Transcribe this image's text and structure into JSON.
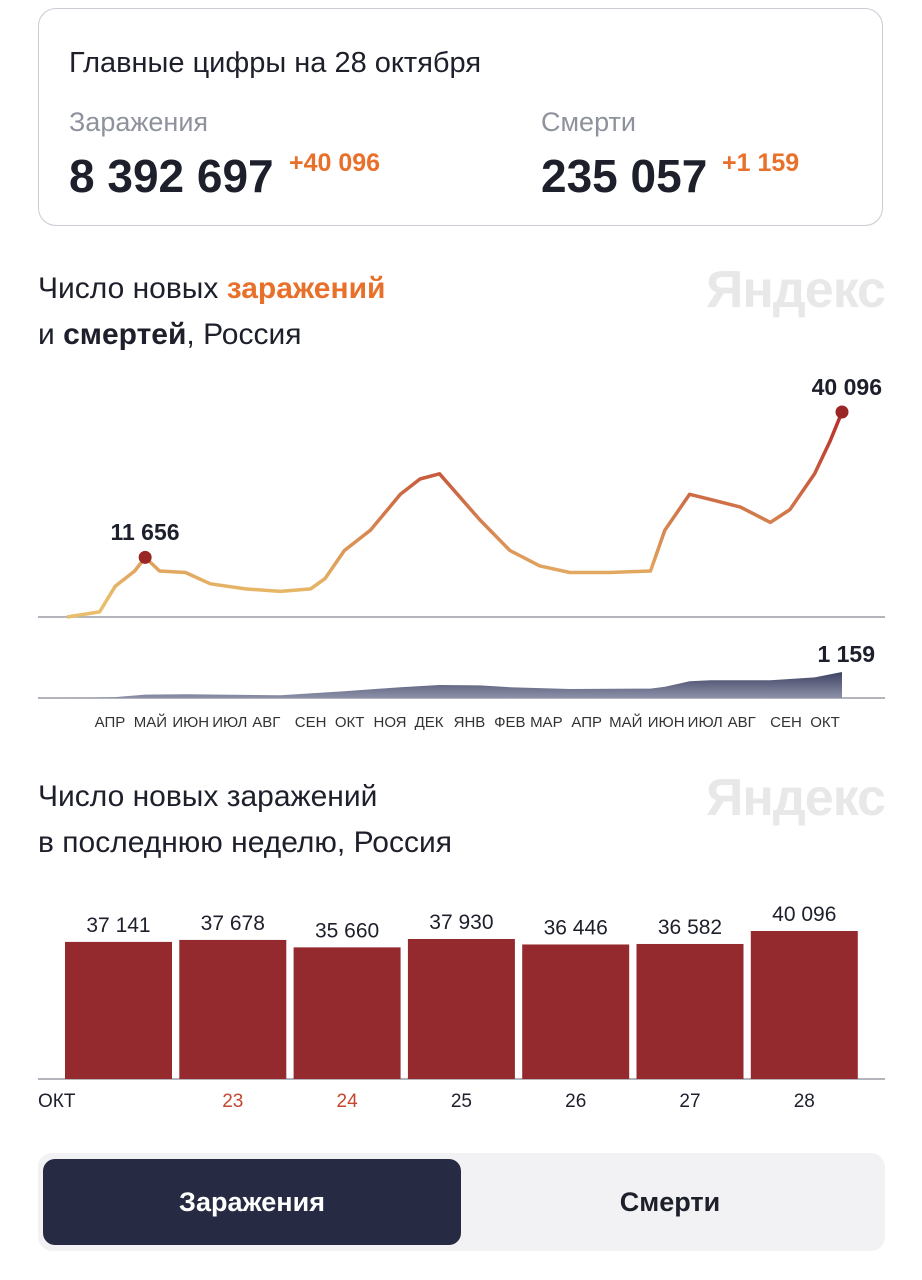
{
  "summary": {
    "title": "Главные цифры на 28 октября",
    "infections_label": "Заражения",
    "infections_total": "8 392 697",
    "infections_delta": "+40 096",
    "deaths_label": "Смерти",
    "deaths_total": "235 057",
    "deaths_delta": "+1 159"
  },
  "logo": "Яндекс",
  "chart_data": [
    {
      "type": "line",
      "title_parts": [
        "Число новых ",
        "заражений",
        "и ",
        "смертей",
        ", Россия"
      ],
      "colors": {
        "low": "#e9bd6a",
        "high": "#b9302a",
        "deaths": "#474c6b"
      },
      "series": [
        {
          "name": "заражения",
          "points": [
            [
              "2020-03-12",
              0
            ],
            [
              "2020-04-06",
              1000
            ],
            [
              "2020-04-18",
              6000
            ],
            [
              "2020-05-03",
              9000
            ],
            [
              "2020-05-11",
              11656
            ],
            [
              "2020-05-22",
              9000
            ],
            [
              "2020-06-11",
              8700
            ],
            [
              "2020-06-30",
              6500
            ],
            [
              "2020-07-27",
              5500
            ],
            [
              "2020-08-23",
              5000
            ],
            [
              "2020-09-15",
              5500
            ],
            [
              "2020-09-26",
              7500
            ],
            [
              "2020-10-11",
              13000
            ],
            [
              "2020-10-31",
              17000
            ],
            [
              "2020-11-23",
              24000
            ],
            [
              "2020-12-08",
              27000
            ],
            [
              "2020-12-23",
              28000
            ],
            [
              "2021-01-04",
              24500
            ],
            [
              "2021-01-23",
              19000
            ],
            [
              "2021-02-15",
              13000
            ],
            [
              "2021-03-10",
              10000
            ],
            [
              "2021-04-02",
              8700
            ],
            [
              "2021-05-03",
              8700
            ],
            [
              "2021-06-03",
              9000
            ],
            [
              "2021-06-14",
              17000
            ],
            [
              "2021-07-03",
              24000
            ],
            [
              "2021-07-19",
              23000
            ],
            [
              "2021-08-11",
              21500
            ],
            [
              "2021-09-03",
              18500
            ],
            [
              "2021-09-18",
              21000
            ],
            [
              "2021-10-07",
              28000
            ],
            [
              "2021-10-19",
              34500
            ],
            [
              "2021-10-28",
              40096
            ]
          ]
        },
        {
          "name": "смерти",
          "points": [
            [
              "2020-03-12",
              0
            ],
            [
              "2020-04-18",
              40
            ],
            [
              "2020-05-11",
              150
            ],
            [
              "2020-06-11",
              170
            ],
            [
              "2020-08-23",
              120
            ],
            [
              "2020-10-11",
              300
            ],
            [
              "2020-11-23",
              480
            ],
            [
              "2020-12-23",
              580
            ],
            [
              "2021-01-23",
              560
            ],
            [
              "2021-02-15",
              480
            ],
            [
              "2021-04-02",
              400
            ],
            [
              "2021-06-03",
              420
            ],
            [
              "2021-06-14",
              500
            ],
            [
              "2021-07-03",
              750
            ],
            [
              "2021-07-19",
              790
            ],
            [
              "2021-09-03",
              790
            ],
            [
              "2021-10-07",
              920
            ],
            [
              "2021-10-28",
              1159
            ]
          ]
        }
      ],
      "annotations": [
        {
          "date": "2020-05-11",
          "label": "11 656"
        },
        {
          "date": "2021-10-28",
          "label": "40 096"
        },
        {
          "date": "2021-10-28",
          "label": "1 159"
        }
      ],
      "xticks": [
        [
          "2020-04-14",
          "АПР"
        ],
        [
          "2020-05-15",
          "МАЙ"
        ],
        [
          "2020-06-15",
          "ИЮН"
        ],
        [
          "2020-07-15",
          "ИЮЛ"
        ],
        [
          "2020-08-12",
          "АВГ"
        ],
        [
          "2020-09-15",
          "СЕН"
        ],
        [
          "2020-10-15",
          "ОКТ"
        ],
        [
          "2020-11-15",
          "НОЯ"
        ],
        [
          "2020-12-15",
          "ДЕК"
        ],
        [
          "2021-01-15",
          "ЯНВ"
        ],
        [
          "2021-02-15",
          "ФЕВ"
        ],
        [
          "2021-03-15",
          "МАР"
        ],
        [
          "2021-04-15",
          "АПР"
        ],
        [
          "2021-05-15",
          "МАЙ"
        ],
        [
          "2021-06-15",
          "ИЮН"
        ],
        [
          "2021-07-15",
          "ИЮЛ"
        ],
        [
          "2021-08-12",
          "АВГ"
        ],
        [
          "2021-09-15",
          "СЕН"
        ],
        [
          "2021-10-15",
          "ОКТ"
        ]
      ]
    },
    {
      "type": "bar",
      "title_lines": [
        "Число новых заражений",
        "в последнюю неделю, Россия"
      ],
      "categories": [
        "",
        "23",
        "24",
        "25",
        "26",
        "27",
        "28"
      ],
      "month_label": "ОКТ",
      "weekend": [
        false,
        true,
        true,
        false,
        false,
        false,
        false
      ],
      "values": [
        37141,
        37678,
        35660,
        37930,
        36446,
        36582,
        40096
      ],
      "labels": [
        "37 141",
        "37 678",
        "35 660",
        "37 930",
        "36 446",
        "36 582",
        "40 096"
      ],
      "color": "#952a2e",
      "ylim": [
        0,
        40096
      ]
    }
  ],
  "tabs": [
    {
      "label": "Заражения",
      "active": true
    },
    {
      "label": "Смерти",
      "active": false
    }
  ]
}
